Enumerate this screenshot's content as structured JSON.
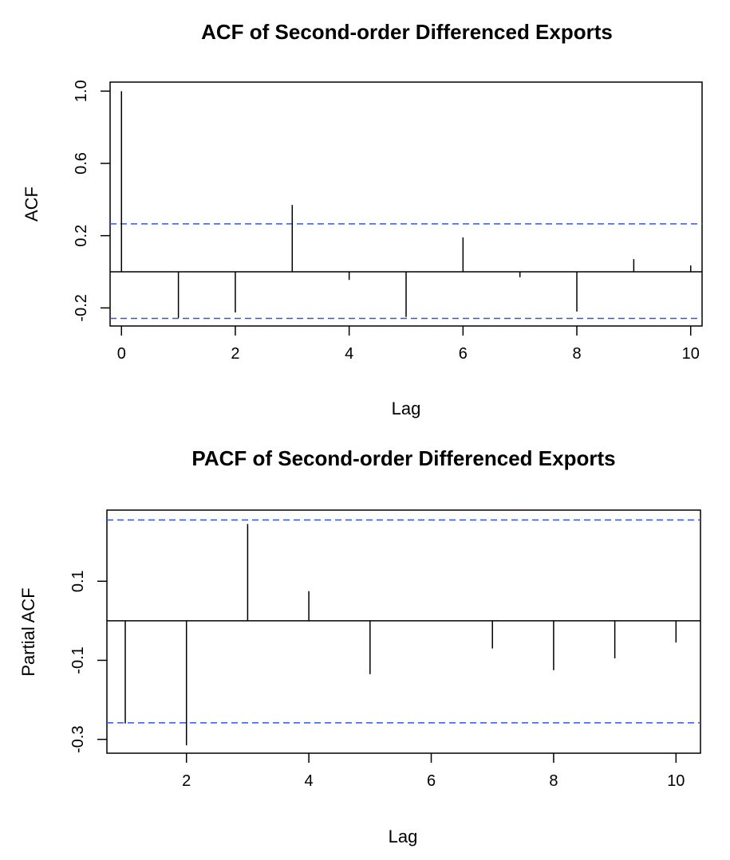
{
  "chart_data": [
    {
      "type": "bar",
      "title": "ACF of Second-order Differenced Exports",
      "xlabel": "Lag",
      "ylabel": "ACF",
      "x_ticks": [
        "0",
        "2",
        "4",
        "6",
        "8",
        "10"
      ],
      "y_ticks": [
        "-0.2",
        "0.2",
        "0.6",
        "1.0"
      ],
      "xlim": [
        -0.2,
        10.2
      ],
      "ylim": [
        -0.3,
        1.05
      ],
      "x": [
        0,
        1,
        2,
        3,
        4,
        5,
        6,
        7,
        8,
        9,
        10
      ],
      "values": [
        1.0,
        -0.255,
        -0.225,
        0.37,
        -0.045,
        -0.25,
        0.19,
        -0.03,
        -0.22,
        0.07,
        0.035
      ],
      "confidence_bounds": [
        0.265,
        -0.258
      ],
      "colors": {
        "bars": "#000000",
        "bounds": "#3355ee",
        "frame": "#000000"
      }
    },
    {
      "type": "bar",
      "title": "PACF of Second-order Differenced Exports",
      "xlabel": "Lag",
      "ylabel": "Partial ACF",
      "x_ticks": [
        "2",
        "4",
        "6",
        "8",
        "10"
      ],
      "y_ticks": [
        "-0.3",
        "-0.1",
        "0.1"
      ],
      "xlim": [
        0.7,
        10.4
      ],
      "ylim": [
        -0.335,
        0.28
      ],
      "x": [
        1,
        2,
        3,
        4,
        5,
        6,
        7,
        8,
        9,
        10
      ],
      "values": [
        -0.26,
        -0.315,
        0.245,
        0.075,
        -0.135,
        0.0,
        -0.07,
        -0.125,
        -0.095,
        -0.055
      ],
      "confidence_bounds": [
        0.255,
        -0.258
      ],
      "colors": {
        "bars": "#000000",
        "bounds": "#3355ee",
        "frame": "#000000"
      }
    }
  ]
}
